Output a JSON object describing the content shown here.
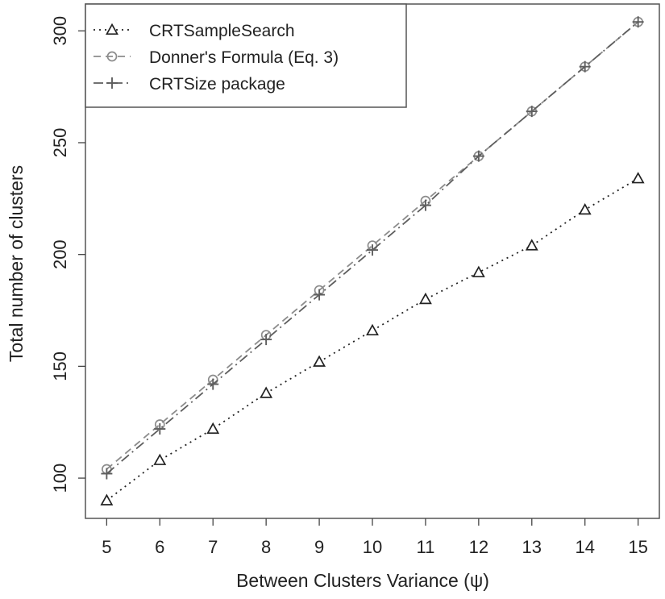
{
  "chart_data": {
    "type": "line",
    "title": "",
    "xlabel": "Between Clusters Variance (ψ)",
    "ylabel": "Total number of clusters",
    "x": [
      5,
      6,
      7,
      8,
      9,
      10,
      11,
      12,
      13,
      14,
      15
    ],
    "x_ticks": [
      "5",
      "6",
      "7",
      "8",
      "9",
      "10",
      "11",
      "12",
      "13",
      "14",
      "15"
    ],
    "y_ticks": [
      "100",
      "150",
      "200",
      "250",
      "300"
    ],
    "xlim": [
      4.6,
      15.4
    ],
    "ylim": [
      82,
      312
    ],
    "grid": false,
    "legend_position": "top-left",
    "series": [
      {
        "name": "CRTSampleSearch",
        "values": [
          90,
          108,
          122,
          138,
          152,
          166,
          180,
          192,
          204,
          220,
          234
        ],
        "marker": "triangle",
        "line_style": "dotted",
        "color": "#222222"
      },
      {
        "name": "Donner's Formula (Eq. 3)",
        "values": [
          104,
          124,
          144,
          164,
          184,
          204,
          224,
          244,
          264,
          284,
          304
        ],
        "marker": "circle",
        "line_style": "dashed",
        "color": "#8c8c8c"
      },
      {
        "name": "CRTSize package",
        "values": [
          102,
          122,
          142,
          162,
          182,
          202,
          222,
          244,
          264,
          284,
          304
        ],
        "marker": "plus",
        "line_style": "dashdot",
        "color": "#5e5e5e"
      }
    ]
  }
}
